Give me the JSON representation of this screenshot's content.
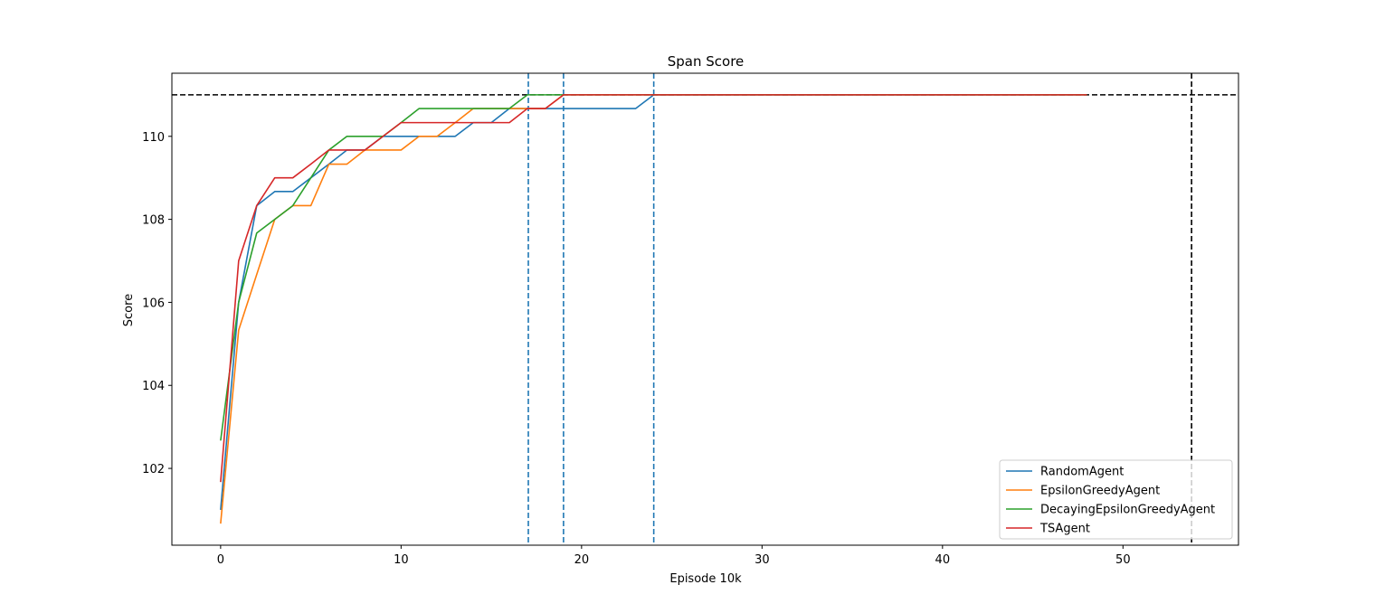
{
  "chart_data": {
    "type": "line",
    "title": "Span Score",
    "xlabel": "Episode 10k",
    "ylabel": "Score",
    "xlim": [
      -2.7,
      56.4
    ],
    "ylim": [
      100.15,
      111.52
    ],
    "xticks": [
      0,
      10,
      20,
      30,
      40,
      50
    ],
    "yticks": [
      102,
      104,
      106,
      108,
      110
    ],
    "grid": false,
    "legend_position": "lower-right",
    "series": [
      {
        "name": "RandomAgent",
        "color": "#1f77b4",
        "x": [
          0,
          1,
          2,
          3,
          4,
          5,
          6,
          7,
          8,
          9,
          10,
          11,
          12,
          13,
          14,
          15,
          16,
          17,
          18,
          19,
          20,
          21,
          22,
          23,
          24,
          25,
          26,
          27,
          28,
          29,
          30,
          31,
          32,
          33,
          34,
          35,
          36,
          37,
          38,
          39,
          40,
          41,
          42,
          43,
          44,
          45,
          46,
          47,
          48
        ],
        "values": [
          101.0,
          106.0,
          108.33,
          108.67,
          108.67,
          109.0,
          109.33,
          109.67,
          109.67,
          110.0,
          110.0,
          110.0,
          110.0,
          110.0,
          110.33,
          110.33,
          110.67,
          110.67,
          110.67,
          110.67,
          110.67,
          110.67,
          110.67,
          110.67,
          111.0,
          111.0,
          111.0,
          111.0,
          111.0,
          111.0,
          111.0,
          111.0,
          111.0,
          111.0,
          111.0,
          111.0,
          111.0,
          111.0,
          111.0,
          111.0,
          111.0,
          111.0,
          111.0,
          111.0,
          111.0,
          111.0,
          111.0,
          111.0,
          111.0
        ]
      },
      {
        "name": "EpsilonGreedyAgent",
        "color": "#ff7f0e",
        "x": [
          0,
          1,
          2,
          3,
          4,
          5,
          6,
          7,
          8,
          9,
          10,
          11,
          12,
          13,
          14,
          15,
          16,
          17,
          18,
          19,
          20,
          21,
          22,
          23,
          24,
          25,
          26,
          27,
          28,
          29,
          30,
          31,
          32,
          33,
          34,
          35,
          36,
          37,
          38,
          39,
          40,
          41,
          42,
          43,
          44,
          45,
          46,
          47,
          48
        ],
        "values": [
          100.67,
          105.33,
          106.67,
          108.0,
          108.33,
          108.33,
          109.33,
          109.33,
          109.67,
          109.67,
          109.67,
          110.0,
          110.0,
          110.33,
          110.67,
          110.67,
          110.67,
          110.67,
          110.67,
          111.0,
          111.0,
          111.0,
          111.0,
          111.0,
          111.0,
          111.0,
          111.0,
          111.0,
          111.0,
          111.0,
          111.0,
          111.0,
          111.0,
          111.0,
          111.0,
          111.0,
          111.0,
          111.0,
          111.0,
          111.0,
          111.0,
          111.0,
          111.0,
          111.0,
          111.0,
          111.0,
          111.0,
          111.0,
          111.0
        ]
      },
      {
        "name": "DecayingEpsilonGreedyAgent",
        "color": "#2ca02c",
        "x": [
          0,
          1,
          2,
          3,
          4,
          5,
          6,
          7,
          8,
          9,
          10,
          11,
          12,
          13,
          14,
          15,
          16,
          17,
          18,
          19,
          20,
          21,
          22,
          23,
          24,
          25,
          26,
          27,
          28,
          29,
          30,
          31,
          32,
          33,
          34,
          35,
          36,
          37,
          38,
          39,
          40,
          41,
          42,
          43,
          44,
          45,
          46,
          47,
          48
        ],
        "values": [
          102.67,
          106.0,
          107.67,
          108.0,
          108.33,
          109.0,
          109.67,
          110.0,
          110.0,
          110.0,
          110.33,
          110.67,
          110.67,
          110.67,
          110.67,
          110.67,
          110.67,
          111.0,
          111.0,
          111.0,
          111.0,
          111.0,
          111.0,
          111.0,
          111.0,
          111.0,
          111.0,
          111.0,
          111.0,
          111.0,
          111.0,
          111.0,
          111.0,
          111.0,
          111.0,
          111.0,
          111.0,
          111.0,
          111.0,
          111.0,
          111.0,
          111.0,
          111.0,
          111.0,
          111.0,
          111.0,
          111.0,
          111.0,
          111.0
        ]
      },
      {
        "name": "TSAgent",
        "color": "#d62728",
        "x": [
          0,
          1,
          2,
          3,
          4,
          5,
          6,
          7,
          8,
          9,
          10,
          11,
          12,
          13,
          14,
          15,
          16,
          17,
          18,
          19,
          20,
          21,
          22,
          23,
          24,
          25,
          26,
          27,
          28,
          29,
          30,
          31,
          32,
          33,
          34,
          35,
          36,
          37,
          38,
          39,
          40,
          41,
          42,
          43,
          44,
          45,
          46,
          47,
          48
        ],
        "values": [
          101.67,
          107.0,
          108.33,
          109.0,
          109.0,
          109.33,
          109.67,
          109.67,
          109.67,
          110.0,
          110.33,
          110.33,
          110.33,
          110.33,
          110.33,
          110.33,
          110.33,
          110.67,
          110.67,
          111.0,
          111.0,
          111.0,
          111.0,
          111.0,
          111.0,
          111.0,
          111.0,
          111.0,
          111.0,
          111.0,
          111.0,
          111.0,
          111.0,
          111.0,
          111.0,
          111.0,
          111.0,
          111.0,
          111.0,
          111.0,
          111.0,
          111.0,
          111.0,
          111.0,
          111.0,
          111.0,
          111.0,
          111.0,
          111.0
        ]
      }
    ],
    "reference_lines": {
      "horizontal": [
        {
          "y": 111.0,
          "color": "#000000"
        }
      ],
      "vertical": [
        {
          "x": 17.05,
          "color": "#1f77b4"
        },
        {
          "x": 19.0,
          "color": "#1f77b4"
        },
        {
          "x": 24.0,
          "color": "#1f77b4"
        },
        {
          "x": 53.8,
          "color": "#000000"
        }
      ]
    }
  }
}
